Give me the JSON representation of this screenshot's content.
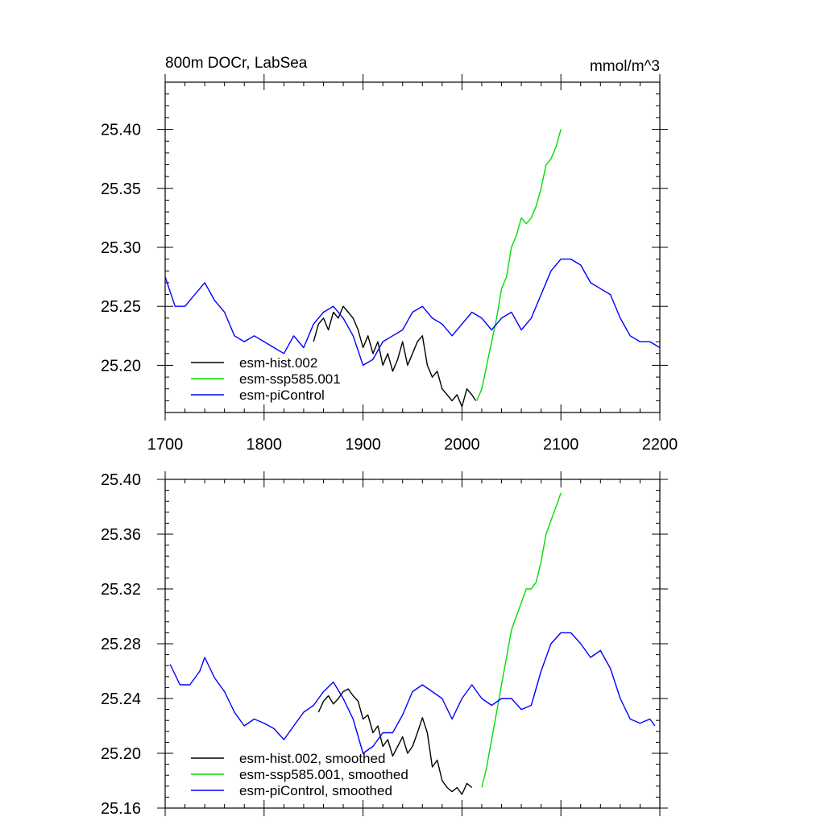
{
  "chart_data": [
    {
      "type": "line",
      "title_left": "800m DOCr, LabSea",
      "title_right": "mmol/m^3",
      "xlim": [
        1700,
        2200
      ],
      "ylim": [
        25.16,
        25.44
      ],
      "x_ticks": [
        1700,
        1800,
        1900,
        2000,
        2100,
        2200
      ],
      "y_ticks": [
        25.2,
        25.25,
        25.3,
        25.35,
        25.4
      ],
      "y_tick_labels": [
        "25.20",
        "25.25",
        "25.30",
        "25.35",
        "25.40"
      ],
      "x_tick_labels": [
        "1700",
        "1800",
        "1900",
        "2000",
        "2100",
        "2200"
      ],
      "legend_position": "bottom-left",
      "series": [
        {
          "name": "esm-hist.002",
          "color": "#000000",
          "x": [
            1850,
            1855,
            1860,
            1865,
            1870,
            1875,
            1880,
            1885,
            1890,
            1895,
            1900,
            1905,
            1910,
            1915,
            1920,
            1925,
            1930,
            1935,
            1940,
            1945,
            1950,
            1955,
            1960,
            1965,
            1970,
            1975,
            1980,
            1985,
            1990,
            1995,
            2000,
            2005,
            2010,
            2014
          ],
          "y": [
            25.22,
            25.235,
            25.24,
            25.23,
            25.245,
            25.24,
            25.25,
            25.245,
            25.24,
            25.23,
            25.215,
            25.225,
            25.21,
            25.22,
            25.2,
            25.21,
            25.195,
            25.205,
            25.22,
            25.2,
            25.21,
            25.22,
            25.225,
            25.2,
            25.19,
            25.195,
            25.18,
            25.175,
            25.17,
            25.175,
            25.165,
            25.18,
            25.175,
            25.17
          ]
        },
        {
          "name": "esm-ssp585.001",
          "color": "#00dd00",
          "x": [
            2015,
            2020,
            2025,
            2030,
            2035,
            2040,
            2045,
            2050,
            2055,
            2060,
            2065,
            2070,
            2075,
            2080,
            2085,
            2090,
            2095,
            2100
          ],
          "y": [
            25.17,
            25.18,
            25.2,
            25.22,
            25.24,
            25.265,
            25.275,
            25.3,
            25.31,
            25.325,
            25.32,
            25.325,
            25.335,
            25.35,
            25.37,
            25.375,
            25.385,
            25.4
          ]
        },
        {
          "name": "esm-piControl",
          "color": "#0000ff",
          "x": [
            1700,
            1710,
            1720,
            1730,
            1740,
            1750,
            1760,
            1770,
            1780,
            1790,
            1800,
            1810,
            1820,
            1830,
            1840,
            1850,
            1860,
            1870,
            1880,
            1890,
            1900,
            1910,
            1920,
            1930,
            1940,
            1950,
            1960,
            1970,
            1980,
            1990,
            2000,
            2010,
            2020,
            2030,
            2040,
            2050,
            2060,
            2070,
            2080,
            2090,
            2100,
            2110,
            2120,
            2130,
            2140,
            2150,
            2160,
            2170,
            2180,
            2190,
            2200
          ],
          "y": [
            25.275,
            25.25,
            25.25,
            25.26,
            25.27,
            25.255,
            25.245,
            25.225,
            25.22,
            25.225,
            25.22,
            25.215,
            25.21,
            25.225,
            25.215,
            25.235,
            25.245,
            25.25,
            25.24,
            25.225,
            25.2,
            25.205,
            25.22,
            25.225,
            25.23,
            25.245,
            25.25,
            25.24,
            25.235,
            25.225,
            25.235,
            25.245,
            25.24,
            25.23,
            25.24,
            25.245,
            25.23,
            25.24,
            25.26,
            25.28,
            25.29,
            25.29,
            25.285,
            25.27,
            25.265,
            25.26,
            25.24,
            25.225,
            25.22,
            25.22,
            25.215
          ]
        }
      ]
    },
    {
      "type": "line",
      "xlim": [
        1700,
        2200
      ],
      "ylim": [
        25.16,
        25.4
      ],
      "y_ticks": [
        25.16,
        25.2,
        25.24,
        25.28,
        25.32,
        25.36,
        25.4
      ],
      "y_tick_labels": [
        "25.16",
        "25.20",
        "25.24",
        "25.28",
        "25.32",
        "25.36",
        "25.40"
      ],
      "legend_position": "bottom-left",
      "series": [
        {
          "name": "esm-hist.002, smoothed",
          "color": "#000000",
          "x": [
            1855,
            1860,
            1865,
            1870,
            1875,
            1880,
            1885,
            1890,
            1895,
            1900,
            1905,
            1910,
            1915,
            1920,
            1925,
            1930,
            1935,
            1940,
            1945,
            1950,
            1955,
            1960,
            1965,
            1970,
            1975,
            1980,
            1985,
            1990,
            1995,
            2000,
            2005,
            2010
          ],
          "y": [
            25.23,
            25.238,
            25.242,
            25.236,
            25.24,
            25.245,
            25.247,
            25.242,
            25.238,
            25.225,
            25.228,
            25.215,
            25.22,
            25.205,
            25.21,
            25.198,
            25.205,
            25.212,
            25.2,
            25.205,
            25.215,
            25.226,
            25.215,
            25.19,
            25.195,
            25.18,
            25.175,
            25.172,
            25.175,
            25.17,
            25.178,
            25.175
          ]
        },
        {
          "name": "esm-ssp585.001, smoothed",
          "color": "#00dd00",
          "x": [
            2020,
            2025,
            2030,
            2035,
            2040,
            2045,
            2050,
            2055,
            2060,
            2065,
            2070,
            2075,
            2080,
            2085,
            2090,
            2095,
            2100
          ],
          "y": [
            25.175,
            25.19,
            25.21,
            25.23,
            25.25,
            25.27,
            25.29,
            25.3,
            25.31,
            25.32,
            25.32,
            25.325,
            25.34,
            25.36,
            25.37,
            25.38,
            25.39
          ]
        },
        {
          "name": "esm-piControl, smoothed",
          "color": "#0000ff",
          "x": [
            1705,
            1715,
            1725,
            1735,
            1740,
            1750,
            1760,
            1770,
            1780,
            1790,
            1800,
            1810,
            1820,
            1830,
            1840,
            1850,
            1860,
            1870,
            1880,
            1890,
            1900,
            1910,
            1920,
            1930,
            1940,
            1950,
            1960,
            1970,
            1980,
            1990,
            2000,
            2010,
            2020,
            2030,
            2040,
            2050,
            2060,
            2070,
            2080,
            2090,
            2100,
            2110,
            2120,
            2130,
            2140,
            2150,
            2160,
            2170,
            2180,
            2190,
            2195
          ],
          "y": [
            25.265,
            25.25,
            25.25,
            25.26,
            25.27,
            25.255,
            25.245,
            25.23,
            25.22,
            25.225,
            25.222,
            25.218,
            25.21,
            25.22,
            25.23,
            25.235,
            25.245,
            25.252,
            25.24,
            25.225,
            25.2,
            25.205,
            25.215,
            25.215,
            25.228,
            25.245,
            25.25,
            25.245,
            25.24,
            25.225,
            25.24,
            25.25,
            25.24,
            25.235,
            25.24,
            25.24,
            25.232,
            25.235,
            25.26,
            25.28,
            25.288,
            25.288,
            25.28,
            25.27,
            25.275,
            25.262,
            25.24,
            25.225,
            25.222,
            25.225,
            25.22
          ]
        }
      ]
    }
  ]
}
